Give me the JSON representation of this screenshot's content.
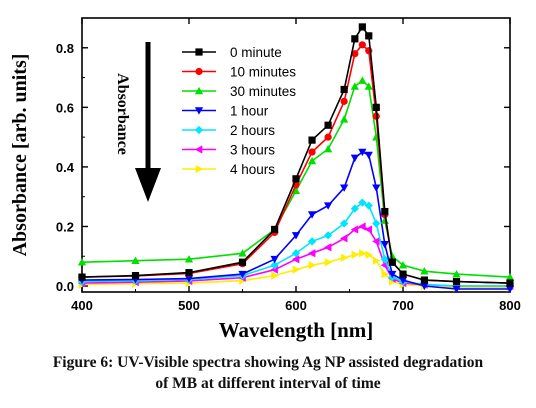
{
  "caption": {
    "label": "Figure 6:",
    "line1": " UV-Visible spectra showing Ag NP assisted degradation",
    "line2": "of MB at different interval of time"
  },
  "chart_data": {
    "type": "line",
    "title": "",
    "xlabel": "Wavelength [nm]",
    "ylabel": "Absorbance [arb. units]",
    "xlim": [
      400,
      800
    ],
    "ylim": [
      -0.02,
      0.9
    ],
    "xticks": [
      400,
      500,
      600,
      700,
      800
    ],
    "yticks": [
      0.0,
      0.2,
      0.4,
      0.6,
      0.8
    ],
    "grid": false,
    "legend": "top-center",
    "annotation": {
      "text": "Absorbance",
      "arrow": "down"
    },
    "x": [
      400,
      450,
      500,
      550,
      580,
      600,
      615,
      630,
      645,
      655,
      662,
      668,
      675,
      683,
      690,
      700,
      720,
      750,
      800
    ],
    "series": [
      {
        "name": "0 minute",
        "color": "#000000",
        "marker": "square",
        "values": [
          0.03,
          0.035,
          0.045,
          0.08,
          0.19,
          0.36,
          0.49,
          0.54,
          0.66,
          0.83,
          0.87,
          0.84,
          0.6,
          0.25,
          0.08,
          0.04,
          0.02,
          0.015,
          0.01
        ]
      },
      {
        "name": "10 minutes",
        "color": "#ff0000",
        "marker": "circle",
        "values": [
          0.03,
          0.034,
          0.042,
          0.075,
          0.18,
          0.34,
          0.45,
          0.5,
          0.62,
          0.78,
          0.81,
          0.79,
          0.57,
          0.24,
          0.08,
          0.04,
          0.02,
          0.015,
          0.01
        ]
      },
      {
        "name": "30 minutes",
        "color": "#00e000",
        "marker": "triangle-up",
        "values": [
          0.08,
          0.085,
          0.09,
          0.11,
          0.19,
          0.32,
          0.42,
          0.46,
          0.56,
          0.67,
          0.69,
          0.67,
          0.5,
          0.22,
          0.1,
          0.07,
          0.05,
          0.04,
          0.03
        ]
      },
      {
        "name": "1 hour",
        "color": "#0000ff",
        "marker": "triangle-down",
        "values": [
          0.02,
          0.022,
          0.025,
          0.04,
          0.09,
          0.17,
          0.24,
          0.27,
          0.33,
          0.43,
          0.45,
          0.44,
          0.33,
          0.14,
          0.04,
          0.02,
          0.0,
          -0.01,
          -0.01
        ]
      },
      {
        "name": "2 hours",
        "color": "#00e5ff",
        "marker": "diamond",
        "values": [
          0.015,
          0.018,
          0.022,
          0.035,
          0.07,
          0.11,
          0.15,
          0.17,
          0.21,
          0.26,
          0.28,
          0.27,
          0.21,
          0.09,
          0.03,
          0.015,
          0.005,
          0.0,
          0.0
        ]
      },
      {
        "name": "3 hours",
        "color": "#ff00ff",
        "marker": "triangle-left",
        "values": [
          0.01,
          0.013,
          0.017,
          0.028,
          0.055,
          0.09,
          0.11,
          0.13,
          0.16,
          0.19,
          0.2,
          0.19,
          0.15,
          0.07,
          0.025,
          0.01,
          0.005,
          0.0,
          0.0
        ]
      },
      {
        "name": "4 hours",
        "color": "#ffee00",
        "marker": "triangle-right",
        "values": [
          0.005,
          0.008,
          0.01,
          0.018,
          0.035,
          0.055,
          0.07,
          0.08,
          0.095,
          0.105,
          0.11,
          0.105,
          0.085,
          0.04,
          0.015,
          0.005,
          0.0,
          -0.005,
          -0.005
        ]
      }
    ]
  }
}
